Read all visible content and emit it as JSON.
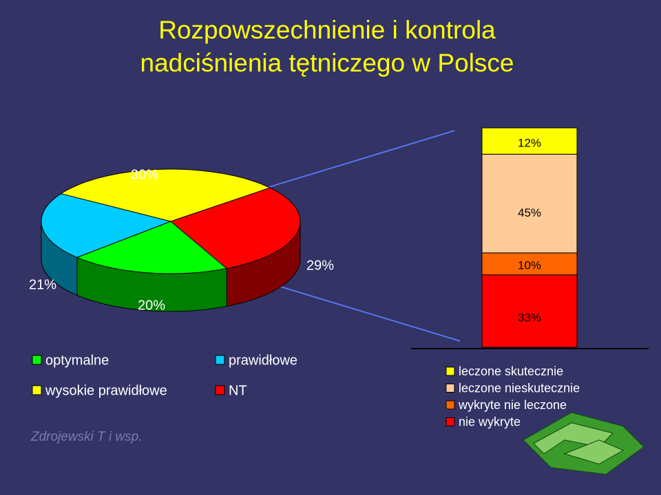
{
  "title_lines": [
    "Rozpowszechnienie i kontrola",
    "nadciśnienia tętniczego w Polsce"
  ],
  "source": "Zdrojewski T i wsp.",
  "chart_data": [
    {
      "type": "pie3d",
      "categories": [
        "optymalne",
        "prawidłowe",
        "wysokie prawidłowe",
        "NT"
      ],
      "values": [
        20,
        21,
        30,
        29
      ],
      "value_labels": [
        "20%",
        "21%",
        "30%",
        "29%"
      ],
      "colors": [
        "#00ff00",
        "#00ccff",
        "#ffff00",
        "#ff0000"
      ]
    },
    {
      "type": "stacked-bar",
      "series": [
        {
          "name": "leczone skutecznie",
          "color": "#ffff00",
          "values": [
            12
          ],
          "value_labels": [
            "12%"
          ]
        },
        {
          "name": "leczone nieskutecznie",
          "color": "#ffcc99",
          "values": [
            45
          ],
          "value_labels": [
            "45%"
          ]
        },
        {
          "name": "wykryte nie leczone",
          "color": "#ff6600",
          "values": [
            10
          ],
          "value_labels": [
            "10%"
          ]
        },
        {
          "name": "nie wykryte",
          "color": "#ff0000",
          "values": [
            33
          ],
          "value_labels": [
            "33%"
          ]
        }
      ]
    }
  ]
}
